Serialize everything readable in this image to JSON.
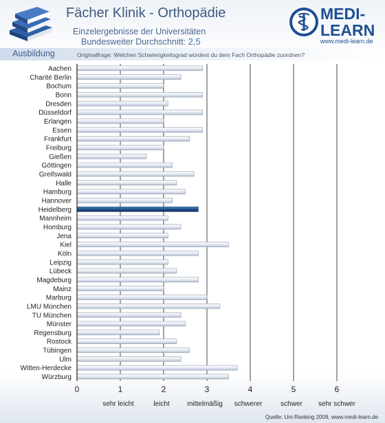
{
  "header": {
    "title": "Fächer Klinik - Orthopädie",
    "subtitle_line1": "Einzelergebnisse der Universitäten",
    "subtitle_line2_prefix": "Bundesweiter Durchschnitt: ",
    "average_value": "2,5",
    "section_label": "Ausbildung",
    "question": "Originalfrage: Welchen Schwierigkeitsgrad würdest du dem Fach Orthopädie zuordnen?"
  },
  "logo": {
    "name_line1": "MEDI-",
    "name_line2": "LEARN",
    "url": "www.medi-learn.de",
    "color": "#1d4f93"
  },
  "footer": {
    "source": "Quelle: Uni-Ranking 2009, www.medi-learn.de"
  },
  "colors": {
    "bar": "#e2e8f0",
    "bar_highlight": "#1f4f8e",
    "grid": "#444444"
  },
  "chart_data": {
    "type": "bar",
    "orientation": "horizontal",
    "xlim": [
      0,
      6
    ],
    "xticks": [
      0,
      1,
      2,
      3,
      4,
      5,
      6
    ],
    "scale_labels": [
      "sehr leicht",
      "leicht",
      "mittelmäßig",
      "schwerer",
      "schwer",
      "sehr schwer"
    ],
    "grid": true,
    "highlight": "Heidelberg",
    "categories": [
      "Aachen",
      "Charité Berlin",
      "Bochum",
      "Bonn",
      "Dresden",
      "Düsseldorf",
      "Erlangen",
      "Essen",
      "Frankfurt",
      "Freiburg",
      "Gießen",
      "Göttingen",
      "Greifswald",
      "Halle",
      "Hamburg",
      "Hannover",
      "Heidelberg",
      "Mannheim",
      "Homburg",
      "Jena",
      "Kiel",
      "Köln",
      "Leipzig",
      "Lübeck",
      "Magdeburg",
      "Mainz",
      "Marburg",
      "LMU München",
      "TU München",
      "Münster",
      "Regensburg",
      "Rostock",
      "Tübingen",
      "Ulm",
      "Witten-Herdecke",
      "Würzburg"
    ],
    "values": [
      2.9,
      2.4,
      2.0,
      2.9,
      2.1,
      2.9,
      2.0,
      2.9,
      2.6,
      2.0,
      1.6,
      2.2,
      2.7,
      2.3,
      2.5,
      2.2,
      2.8,
      2.1,
      2.4,
      2.1,
      3.5,
      2.8,
      2.1,
      2.3,
      2.8,
      2.0,
      3.0,
      3.3,
      2.4,
      2.5,
      1.9,
      2.3,
      2.6,
      2.4,
      3.7,
      3.5
    ]
  }
}
